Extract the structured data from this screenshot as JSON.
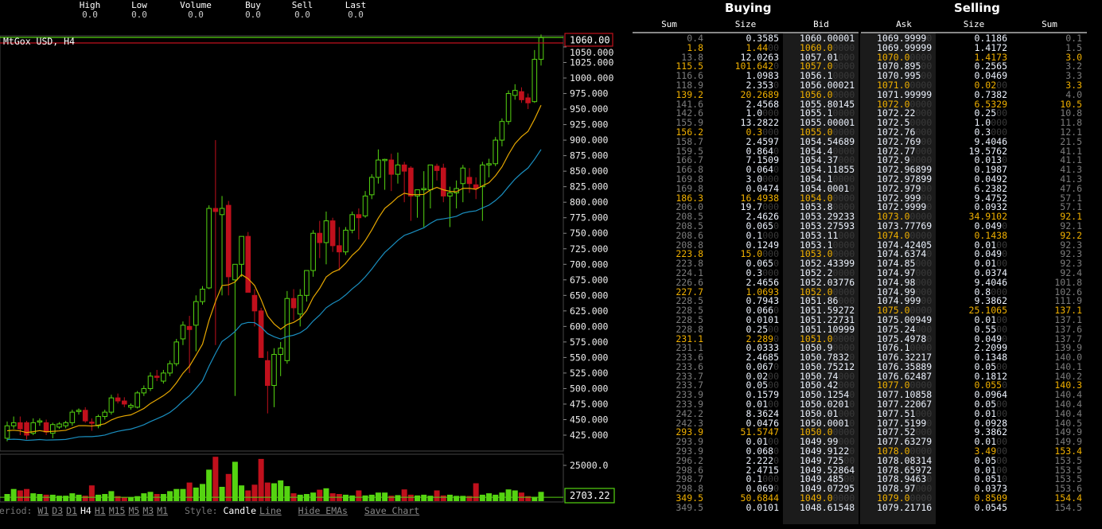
{
  "stats": [
    {
      "label": "High",
      "value": "0.0"
    },
    {
      "label": "Low",
      "value": "0.0"
    },
    {
      "label": "Volume",
      "value": "0.0"
    },
    {
      "label": "Buy",
      "value": "0.0"
    },
    {
      "label": "Sell",
      "value": "0.0"
    },
    {
      "label": "Last",
      "value": "0.0"
    }
  ],
  "chart": {
    "title": "MtGox USD, H4",
    "price_label": "1060.00",
    "volume_label": "2703.22",
    "volume_tick": "25000.0",
    "colors": {
      "up": "#55d411",
      "down": "#c0101c",
      "ema_fast": "#e6a700",
      "ema_slow": "#1a8fc0",
      "bid_line": "#c0101c",
      "ask_line": "#55d411"
    },
    "price_ticks": [
      "1050.000",
      "1025.000",
      "1000.000",
      "975.000",
      "950.000",
      "925.000",
      "900.000",
      "875.000",
      "850.000",
      "825.000",
      "800.000",
      "775.000",
      "750.000",
      "725.000",
      "700.000",
      "675.000",
      "650.000",
      "625.000",
      "600.000",
      "575.000",
      "550.000",
      "525.000",
      "500.000",
      "475.000",
      "450.000",
      "425.000"
    ]
  },
  "chart_data": {
    "type": "candlestick",
    "ylim": [
      410,
      1075
    ],
    "current_bid": 1060.0,
    "current_ask": 1069.9999,
    "ohlc": [
      [
        420,
        447,
        415,
        440
      ],
      [
        440,
        455,
        435,
        445
      ],
      [
        445,
        455,
        425,
        435
      ],
      [
        445,
        448,
        418,
        425
      ],
      [
        428,
        452,
        425,
        445
      ],
      [
        446,
        452,
        440,
        448
      ],
      [
        445,
        450,
        425,
        430
      ],
      [
        428,
        445,
        420,
        442
      ],
      [
        438,
        446,
        435,
        443
      ],
      [
        440,
        448,
        436,
        445
      ],
      [
        445,
        466,
        440,
        462
      ],
      [
        463,
        468,
        458,
        465
      ],
      [
        465,
        470,
        445,
        448
      ],
      [
        446,
        452,
        432,
        445
      ],
      [
        440,
        458,
        436,
        455
      ],
      [
        455,
        466,
        450,
        462
      ],
      [
        462,
        490,
        458,
        485
      ],
      [
        485,
        492,
        476,
        480
      ],
      [
        480,
        486,
        470,
        475
      ],
      [
        470,
        476,
        466,
        473
      ],
      [
        470,
        496,
        468,
        493
      ],
      [
        493,
        505,
        488,
        500
      ],
      [
        500,
        526,
        496,
        520
      ],
      [
        520,
        530,
        512,
        518
      ],
      [
        512,
        530,
        508,
        525
      ],
      [
        525,
        545,
        520,
        540
      ],
      [
        540,
        580,
        536,
        575
      ],
      [
        580,
        608,
        570,
        602
      ],
      [
        600,
        617,
        525,
        595
      ],
      [
        602,
        650,
        560,
        640
      ],
      [
        640,
        665,
        635,
        660
      ],
      [
        662,
        795,
        660,
        790
      ],
      [
        790,
        900,
        570,
        785
      ],
      [
        780,
        810,
        650,
        790
      ],
      [
        795,
        802,
        650,
        680
      ],
      [
        675,
        700,
        488,
        700
      ],
      [
        700,
        745,
        680,
        745
      ],
      [
        745,
        752,
        655,
        655
      ],
      [
        650,
        660,
        600,
        625
      ],
      [
        625,
        630,
        550,
        550
      ],
      [
        545,
        560,
        460,
        505
      ],
      [
        505,
        565,
        470,
        555
      ],
      [
        555,
        575,
        520,
        565
      ],
      [
        545,
        657,
        540,
        645
      ],
      [
        645,
        660,
        610,
        630
      ],
      [
        620,
        660,
        600,
        650
      ],
      [
        650,
        690,
        640,
        690
      ],
      [
        690,
        755,
        680,
        750
      ],
      [
        750,
        770,
        710,
        735
      ],
      [
        735,
        785,
        700,
        770
      ],
      [
        770,
        775,
        720,
        730
      ],
      [
        730,
        760,
        690,
        720
      ],
      [
        720,
        760,
        715,
        755
      ],
      [
        755,
        785,
        750,
        780
      ],
      [
        780,
        790,
        740,
        775
      ],
      [
        778,
        818,
        775,
        810
      ],
      [
        812,
        845,
        805,
        840
      ],
      [
        840,
        885,
        830,
        868
      ],
      [
        868,
        870,
        820,
        869
      ],
      [
        868,
        878,
        818,
        845
      ],
      [
        845,
        880,
        830,
        860
      ],
      [
        860,
        865,
        800,
        850
      ],
      [
        855,
        858,
        770,
        810
      ],
      [
        810,
        820,
        775,
        820
      ],
      [
        820,
        850,
        760,
        822
      ],
      [
        820,
        860,
        790,
        860
      ],
      [
        858,
        862,
        835,
        851
      ],
      [
        855,
        862,
        800,
        810
      ],
      [
        810,
        825,
        760,
        815
      ],
      [
        815,
        835,
        790,
        822
      ],
      [
        830,
        860,
        800,
        855
      ],
      [
        840,
        855,
        815,
        830
      ],
      [
        828,
        840,
        805,
        822
      ],
      [
        825,
        865,
        770,
        860
      ],
      [
        860,
        870,
        840,
        862
      ],
      [
        862,
        905,
        858,
        900
      ],
      [
        900,
        935,
        890,
        930
      ],
      [
        930,
        980,
        925,
        975
      ],
      [
        972,
        990,
        965,
        980
      ],
      [
        978,
        985,
        960,
        965
      ],
      [
        968,
        975,
        950,
        960
      ],
      [
        962,
        1045,
        960,
        1030
      ],
      [
        1030,
        1070,
        1020,
        1065
      ]
    ],
    "volume_ylim": [
      0,
      32000
    ],
    "volumes": [
      5000,
      8500,
      7500,
      8500,
      5500,
      5000,
      4500,
      4500,
      3800,
      3800,
      5500,
      4500,
      3800,
      11000,
      4500,
      5000,
      7000,
      3500,
      2800,
      2800,
      3500,
      5500,
      6500,
      5000,
      5000,
      7000,
      8500,
      8500,
      13000,
      9500,
      12000,
      22000,
      31000,
      10000,
      19000,
      27500,
      11000,
      7500,
      11500,
      29500,
      13000,
      12500,
      14500,
      10500,
      5500,
      4500,
      5000,
      6000,
      8000,
      9000,
      5500,
      5000,
      4500,
      4000,
      7500,
      4000,
      4500,
      6000,
      6000,
      3800,
      4200,
      8200,
      4500,
      4000,
      4500,
      3800,
      7500,
      4000,
      4500,
      3700,
      3700,
      3600,
      12500,
      4500,
      5500,
      4500,
      6000,
      8200,
      7500,
      6000,
      3500,
      3000,
      6500
    ]
  },
  "toolbar": {
    "period_label": "Period:",
    "periods": [
      "W1",
      "D3",
      "D1",
      "H4",
      "H1",
      "M15",
      "M5",
      "M3",
      "M1"
    ],
    "selected_period": "H4",
    "style_label": "Style:",
    "styles": [
      "Candle",
      "Line"
    ],
    "selected_style": "Candle",
    "hide_emas": "Hide EMAs",
    "save_chart": "Save Chart"
  },
  "orderbook": {
    "buying_title": "Buying",
    "selling_title": "Selling",
    "buy_headers": [
      "Sum",
      "Size",
      "Bid"
    ],
    "sell_headers": [
      "Ask",
      "Size",
      "Sum"
    ],
    "bids": [
      [
        "0.4",
        "0.3585",
        "1060.00001"
      ],
      [
        "1.8",
        "1.44",
        "1060.0"
      ],
      [
        "13.8",
        "12.0263",
        "1057.01"
      ],
      [
        "115.5",
        "101.642",
        "1057.0"
      ],
      [
        "116.6",
        "1.0983",
        "1056.1"
      ],
      [
        "118.9",
        "2.353",
        "1056.00021"
      ],
      [
        "139.2",
        "20.2689",
        "1056.0"
      ],
      [
        "141.6",
        "2.4568",
        "1055.80145"
      ],
      [
        "142.6",
        "1.0",
        "1055.1"
      ],
      [
        "155.9",
        "13.2822",
        "1055.00001"
      ],
      [
        "156.2",
        "0.3",
        "1055.0"
      ],
      [
        "158.7",
        "2.4597",
        "1054.54689"
      ],
      [
        "159.5",
        "0.864",
        "1054.4"
      ],
      [
        "166.7",
        "7.1509",
        "1054.37"
      ],
      [
        "166.8",
        "0.064",
        "1054.11855"
      ],
      [
        "169.8",
        "3.0",
        "1054.1"
      ],
      [
        "169.8",
        "0.0474",
        "1054.0001"
      ],
      [
        "186.3",
        "16.4938",
        "1054.0"
      ],
      [
        "206.0",
        "19.7",
        "1053.8"
      ],
      [
        "208.5",
        "2.4626",
        "1053.29233"
      ],
      [
        "208.5",
        "0.065",
        "1053.27593"
      ],
      [
        "208.6",
        "0.1",
        "1053.11"
      ],
      [
        "208.8",
        "0.1249",
        "1053.1"
      ],
      [
        "223.8",
        "15.0",
        "1053.0"
      ],
      [
        "223.8",
        "0.065",
        "1052.43399"
      ],
      [
        "224.1",
        "0.3",
        "1052.2"
      ],
      [
        "226.6",
        "2.4656",
        "1052.03776"
      ],
      [
        "227.7",
        "1.0693",
        "1052.0"
      ],
      [
        "228.5",
        "0.7943",
        "1051.86"
      ],
      [
        "228.5",
        "0.066",
        "1051.59272"
      ],
      [
        "228.5",
        "0.0101",
        "1051.22731"
      ],
      [
        "228.8",
        "0.25",
        "1051.10999"
      ],
      [
        "231.1",
        "2.289",
        "1051.0"
      ],
      [
        "231.1",
        "0.0333",
        "1050.9"
      ],
      [
        "233.6",
        "2.4685",
        "1050.7832"
      ],
      [
        "233.6",
        "0.067",
        "1050.75212"
      ],
      [
        "233.7",
        "0.02",
        "1050.74"
      ],
      [
        "233.7",
        "0.05",
        "1050.42"
      ],
      [
        "233.9",
        "0.1579",
        "1050.1254"
      ],
      [
        "233.9",
        "0.01",
        "1050.0201"
      ],
      [
        "242.2",
        "8.3624",
        "1050.01"
      ],
      [
        "242.3",
        "0.0476",
        "1050.0001"
      ],
      [
        "293.9",
        "51.5747",
        "1050.0"
      ],
      [
        "293.9",
        "0.01",
        "1049.99"
      ],
      [
        "293.9",
        "0.068",
        "1049.9122"
      ],
      [
        "296.2",
        "2.222",
        "1049.725"
      ],
      [
        "298.6",
        "2.4715",
        "1049.52864"
      ],
      [
        "298.7",
        "0.1",
        "1049.485"
      ],
      [
        "298.8",
        "0.069",
        "1049.07295"
      ],
      [
        "349.5",
        "50.6844",
        "1049.0"
      ],
      [
        "349.5",
        "0.0101",
        "1048.61548"
      ]
    ],
    "asks": [
      [
        "1069.9999",
        "0.1186",
        "0.1"
      ],
      [
        "1069.99999",
        "1.4172",
        "1.5"
      ],
      [
        "1070.0",
        "1.4173",
        "3.0"
      ],
      [
        "1070.895",
        "0.2565",
        "3.2"
      ],
      [
        "1070.995",
        "0.0469",
        "3.3"
      ],
      [
        "1071.0",
        "0.02",
        "3.3"
      ],
      [
        "1071.99999",
        "0.7382",
        "4.0"
      ],
      [
        "1072.0",
        "6.5329",
        "10.5"
      ],
      [
        "1072.22",
        "0.25",
        "10.8"
      ],
      [
        "1072.5",
        "1.0",
        "11.8"
      ],
      [
        "1072.76",
        "0.3",
        "12.1"
      ],
      [
        "1072.769",
        "9.4046",
        "21.5"
      ],
      [
        "1072.77",
        "19.5762",
        "41.1"
      ],
      [
        "1072.9",
        "0.013",
        "41.1"
      ],
      [
        "1072.96899",
        "0.1987",
        "41.3"
      ],
      [
        "1072.97899",
        "0.0492",
        "41.3"
      ],
      [
        "1072.979",
        "6.2382",
        "47.6"
      ],
      [
        "1072.999",
        "9.4752",
        "57.1"
      ],
      [
        "1072.9999",
        "0.0932",
        "57.1"
      ],
      [
        "1073.0",
        "34.9102",
        "92.1"
      ],
      [
        "1073.77769",
        "0.049",
        "92.1"
      ],
      [
        "1074.0",
        "0.1438",
        "92.2"
      ],
      [
        "1074.42405",
        "0.01",
        "92.3"
      ],
      [
        "1074.6374",
        "0.049",
        "92.3"
      ],
      [
        "1074.85",
        "0.01",
        "92.3"
      ],
      [
        "1074.97",
        "0.0374",
        "92.4"
      ],
      [
        "1074.98",
        "9.4046",
        "101.8"
      ],
      [
        "1074.99",
        "0.8",
        "102.6"
      ],
      [
        "1074.999",
        "9.3862",
        "111.9"
      ],
      [
        "1075.0",
        "25.1065",
        "137.1"
      ],
      [
        "1075.00949",
        "0.01",
        "137.1"
      ],
      [
        "1075.24",
        "0.55",
        "137.6"
      ],
      [
        "1075.4978",
        "0.049",
        "137.7"
      ],
      [
        "1076.1",
        "2.2099",
        "139.9"
      ],
      [
        "1076.32217",
        "0.1348",
        "140.0"
      ],
      [
        "1076.35889",
        "0.05",
        "140.1"
      ],
      [
        "1076.62487",
        "0.1812",
        "140.2"
      ],
      [
        "1077.0",
        "0.055",
        "140.3"
      ],
      [
        "1077.10858",
        "0.0964",
        "140.4"
      ],
      [
        "1077.22067",
        "0.05",
        "140.4"
      ],
      [
        "1077.51",
        "0.01",
        "140.4"
      ],
      [
        "1077.5199",
        "0.0928",
        "140.5"
      ],
      [
        "1077.52",
        "9.3862",
        "149.9"
      ],
      [
        "1077.63279",
        "0.01",
        "149.9"
      ],
      [
        "1078.0",
        "3.49",
        "153.4"
      ],
      [
        "1078.08314",
        "0.05",
        "153.5"
      ],
      [
        "1078.65972",
        "0.01",
        "153.5"
      ],
      [
        "1078.9463",
        "0.051",
        "153.5"
      ],
      [
        "1078.97",
        "0.0373",
        "153.6"
      ],
      [
        "1079.0",
        "0.8509",
        "154.4"
      ],
      [
        "1079.21716",
        "0.0545",
        "154.5"
      ]
    ]
  }
}
